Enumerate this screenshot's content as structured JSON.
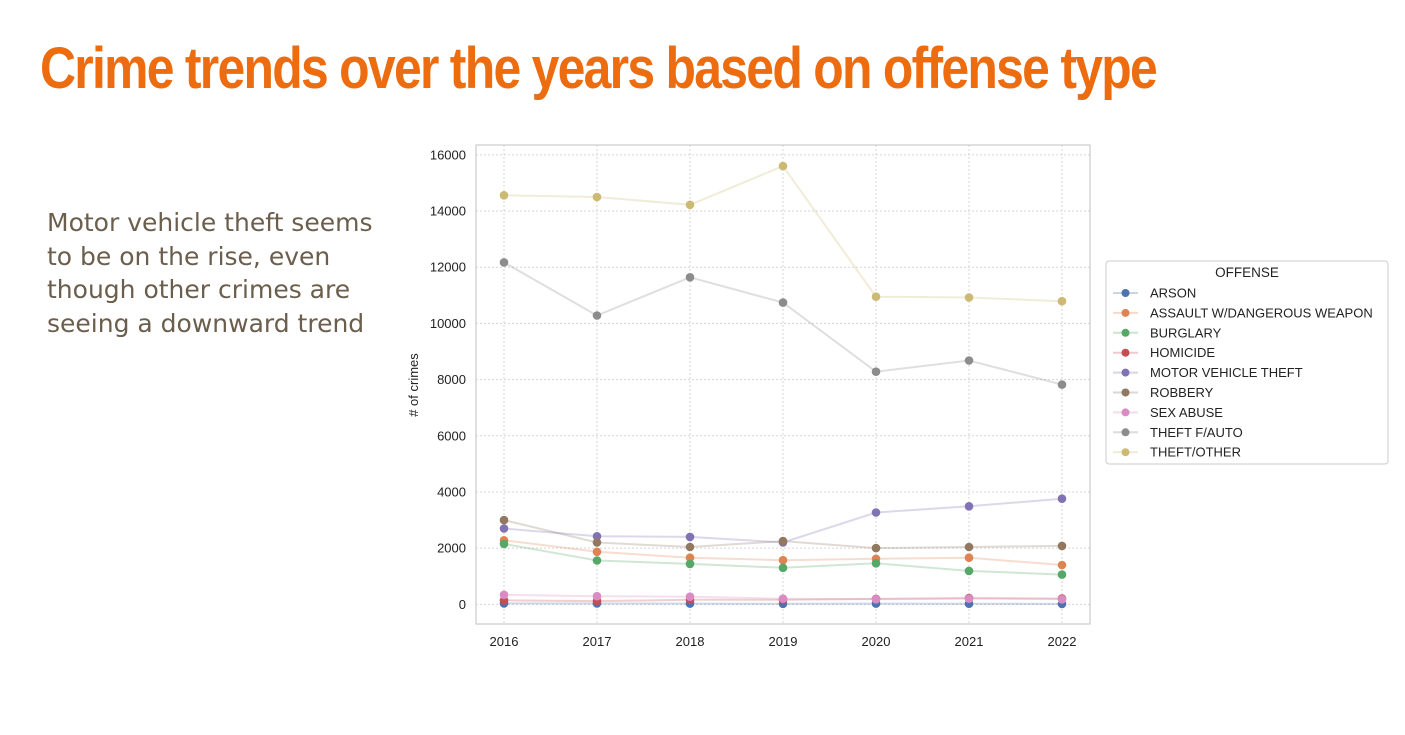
{
  "slide": {
    "title": "Crime trends over the years based on offense type",
    "body": "Motor vehicle theft seems to be on the rise, even though other crimes are seeing a downward trend"
  },
  "chart_data": {
    "type": "line",
    "title": "",
    "xlabel": "",
    "ylabel": "# of crimes",
    "x": [
      2016,
      2017,
      2018,
      2019,
      2020,
      2021,
      2022
    ],
    "xticks": [
      "2016",
      "2017",
      "2018",
      "2019",
      "2020",
      "2021",
      "2022"
    ],
    "yticks": [
      "0",
      "2000",
      "4000",
      "6000",
      "8000",
      "10000",
      "12000",
      "14000",
      "16000"
    ],
    "ylim": [
      -700,
      16350
    ],
    "grid": true,
    "legend": {
      "title": "OFFENSE",
      "placement": "right"
    },
    "series": [
      {
        "name": "ARSON",
        "color": "#4c72b0",
        "values": [
          35,
          30,
          25,
          20,
          25,
          22,
          15
        ]
      },
      {
        "name": "ASSAULT W/DANGEROUS WEAPON",
        "color": "#dd8452",
        "values": [
          2280,
          1870,
          1660,
          1570,
          1620,
          1660,
          1400
        ]
      },
      {
        "name": "BURGLARY",
        "color": "#55a868",
        "values": [
          2150,
          1560,
          1440,
          1300,
          1460,
          1190,
          1060
        ]
      },
      {
        "name": "HOMICIDE",
        "color": "#c44e52",
        "values": [
          140,
          115,
          160,
          165,
          195,
          225,
          205
        ]
      },
      {
        "name": "MOTOR VEHICLE THEFT",
        "color": "#8172b3",
        "values": [
          2700,
          2420,
          2400,
          2200,
          3270,
          3490,
          3760
        ]
      },
      {
        "name": "ROBBERY",
        "color": "#937860",
        "values": [
          3000,
          2200,
          2040,
          2250,
          2000,
          2040,
          2080
        ]
      },
      {
        "name": "SEX ABUSE",
        "color": "#da8bc3",
        "values": [
          340,
          290,
          270,
          200,
          180,
          200,
          180
        ]
      },
      {
        "name": "THEFT F/AUTO",
        "color": "#8c8c8c",
        "values": [
          12170,
          10280,
          11640,
          10740,
          8280,
          8680,
          7820
        ]
      },
      {
        "name": "THEFT/OTHER",
        "color": "#ccb974",
        "values": [
          14560,
          14500,
          14220,
          15600,
          10950,
          10920,
          10790
        ]
      }
    ]
  }
}
